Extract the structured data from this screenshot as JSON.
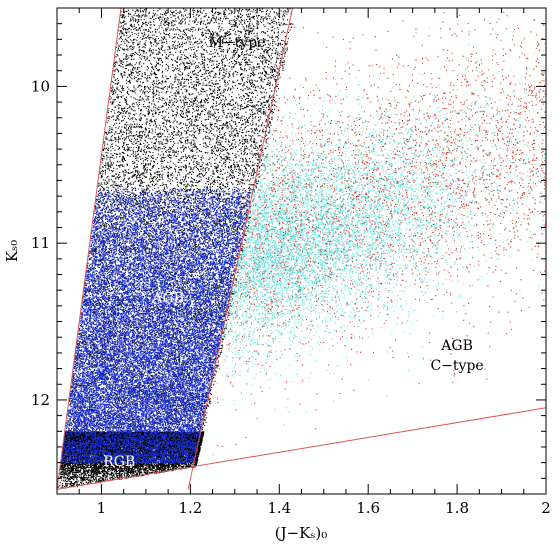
{
  "chart_data": {
    "type": "scatter",
    "title": "",
    "xlabel": "(J−Kₛ)₀",
    "ylabel": "Kₛ₀",
    "xlim": [
      0.9,
      2.0
    ],
    "ylim": [
      12.6,
      9.5
    ],
    "y_inverted": true,
    "grid": false,
    "legend": "none",
    "x_ticks": [
      {
        "value": 1.0,
        "label": "1"
      },
      {
        "value": 1.2,
        "label": "1.2"
      },
      {
        "value": 1.4,
        "label": "1.4"
      },
      {
        "value": 1.6,
        "label": "1.6"
      },
      {
        "value": 1.8,
        "label": "1.8"
      },
      {
        "value": 2.0,
        "label": "2"
      }
    ],
    "y_ticks": [
      {
        "value": 10,
        "label": "10"
      },
      {
        "value": 11,
        "label": "11"
      },
      {
        "value": 12,
        "label": "12"
      }
    ],
    "series": [
      {
        "color": "#000000",
        "description_key": "bright_all"
      },
      {
        "color": "#1a2fd6",
        "description_key": "agb_m"
      },
      {
        "color": "#66e0df",
        "description_key": "cstar_cyan"
      },
      {
        "color": "#d23a22",
        "description_key": "cstar_red"
      }
    ],
    "boundaries": [
      {
        "color": "#e05555",
        "points": [
          [
            0.9,
            12.57
          ],
          [
            1.044,
            9.5
          ]
        ]
      },
      {
        "color": "#e05555",
        "points": [
          [
            1.195,
            12.57
          ],
          [
            1.43,
            9.5
          ]
        ]
      },
      {
        "color": "#e05555",
        "points": [
          [
            0.9,
            12.57
          ],
          [
            2.0,
            12.05
          ]
        ]
      }
    ],
    "annotations": [
      {
        "text": "M−type",
        "x": 1.305,
        "y": 9.75,
        "color": "#000000"
      },
      {
        "text": "AGB",
        "x": 1.15,
        "y": 11.38,
        "color": "#ffffff"
      },
      {
        "text": "RGB",
        "x": 1.04,
        "y": 12.42,
        "color": "#ffffff"
      },
      {
        "text": "AGB",
        "x": 1.8,
        "y": 11.68,
        "color": "#000000"
      },
      {
        "text": "C−type",
        "x": 1.8,
        "y": 11.81,
        "color": "#000000"
      }
    ]
  }
}
